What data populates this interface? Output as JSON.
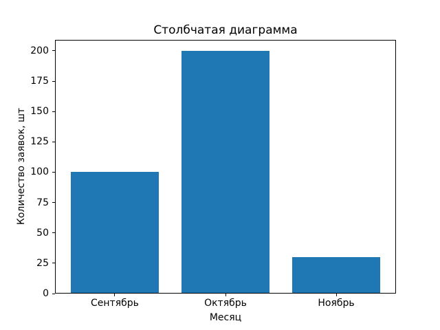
{
  "figure": {
    "background": "#ffffff"
  },
  "chart_data": {
    "type": "bar",
    "title": "Столбчатая диаграмма",
    "xlabel": "Месяц",
    "ylabel": "Количество заявок, шт",
    "categories": [
      "Сентябрь",
      "Октябрь",
      "Ноябрь"
    ],
    "values": [
      100,
      200,
      30
    ],
    "yticks": [
      0,
      25,
      50,
      75,
      100,
      125,
      150,
      175,
      200
    ],
    "ylim": [
      0,
      209
    ],
    "bar_color": "#1f77b4",
    "axis_color": "#000000",
    "text_color": "#000000",
    "grid": false,
    "legend": "none"
  }
}
